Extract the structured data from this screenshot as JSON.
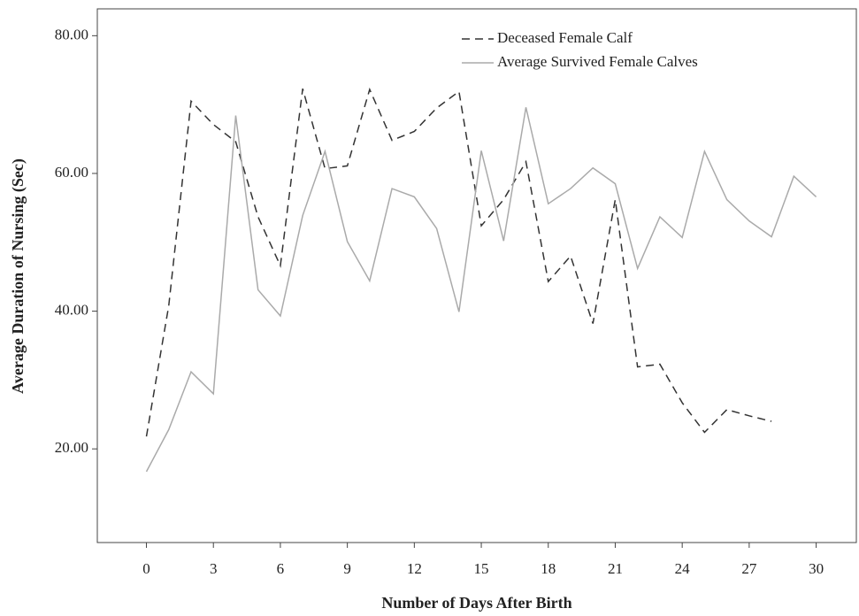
{
  "chart_data": {
    "type": "line",
    "x_label": "Number of Days After Birth",
    "y_label": "Average Duration of Nursing (Sec)",
    "x": [
      0,
      1,
      2,
      3,
      4,
      5,
      6,
      7,
      8,
      9,
      10,
      11,
      12,
      13,
      14,
      15,
      16,
      17,
      18,
      19,
      20,
      21,
      22,
      23,
      24,
      25,
      26,
      27,
      28,
      29,
      30
    ],
    "series": [
      {
        "name": "Deceased Female Calf",
        "color": "#333333",
        "dashed": true,
        "values": [
          21.8,
          40.8,
          70.5,
          67.1,
          64.6,
          53.7,
          46.6,
          72.3,
          60.7,
          61.1,
          72.2,
          64.8,
          66.1,
          69.5,
          71.9,
          52.4,
          56.2,
          61.7,
          44.3,
          48.0,
          38.2,
          56.2,
          31.9,
          32.3,
          26.7,
          22.4,
          25.7,
          24.8,
          24.0,
          null,
          null
        ]
      },
      {
        "name": "Average Survived Female Calves",
        "color": "#aaaaaa",
        "dashed": false,
        "values": [
          16.7,
          22.8,
          31.2,
          28.0,
          68.4,
          43.1,
          39.3,
          53.9,
          63.2,
          50.1,
          44.4,
          57.8,
          56.6,
          52.0,
          39.9,
          63.3,
          50.2,
          69.6,
          55.6,
          57.8,
          60.8,
          58.5,
          46.2,
          53.7,
          50.7,
          63.2,
          56.2,
          53.1,
          50.8,
          59.6,
          56.6
        ]
      }
    ],
    "xlim": [
      -2.2,
      31.8
    ],
    "ylim": [
      6.4,
      83.9
    ],
    "xticks": [
      0,
      3,
      6,
      9,
      12,
      15,
      18,
      21,
      24,
      27,
      30
    ],
    "yticks": [
      {
        "value": 20,
        "label": "20.00"
      },
      {
        "value": 40,
        "label": "40.00"
      },
      {
        "value": 60,
        "label": "60.00"
      },
      {
        "value": 80,
        "label": "80.00"
      }
    ],
    "grid": false,
    "legend": "top"
  }
}
